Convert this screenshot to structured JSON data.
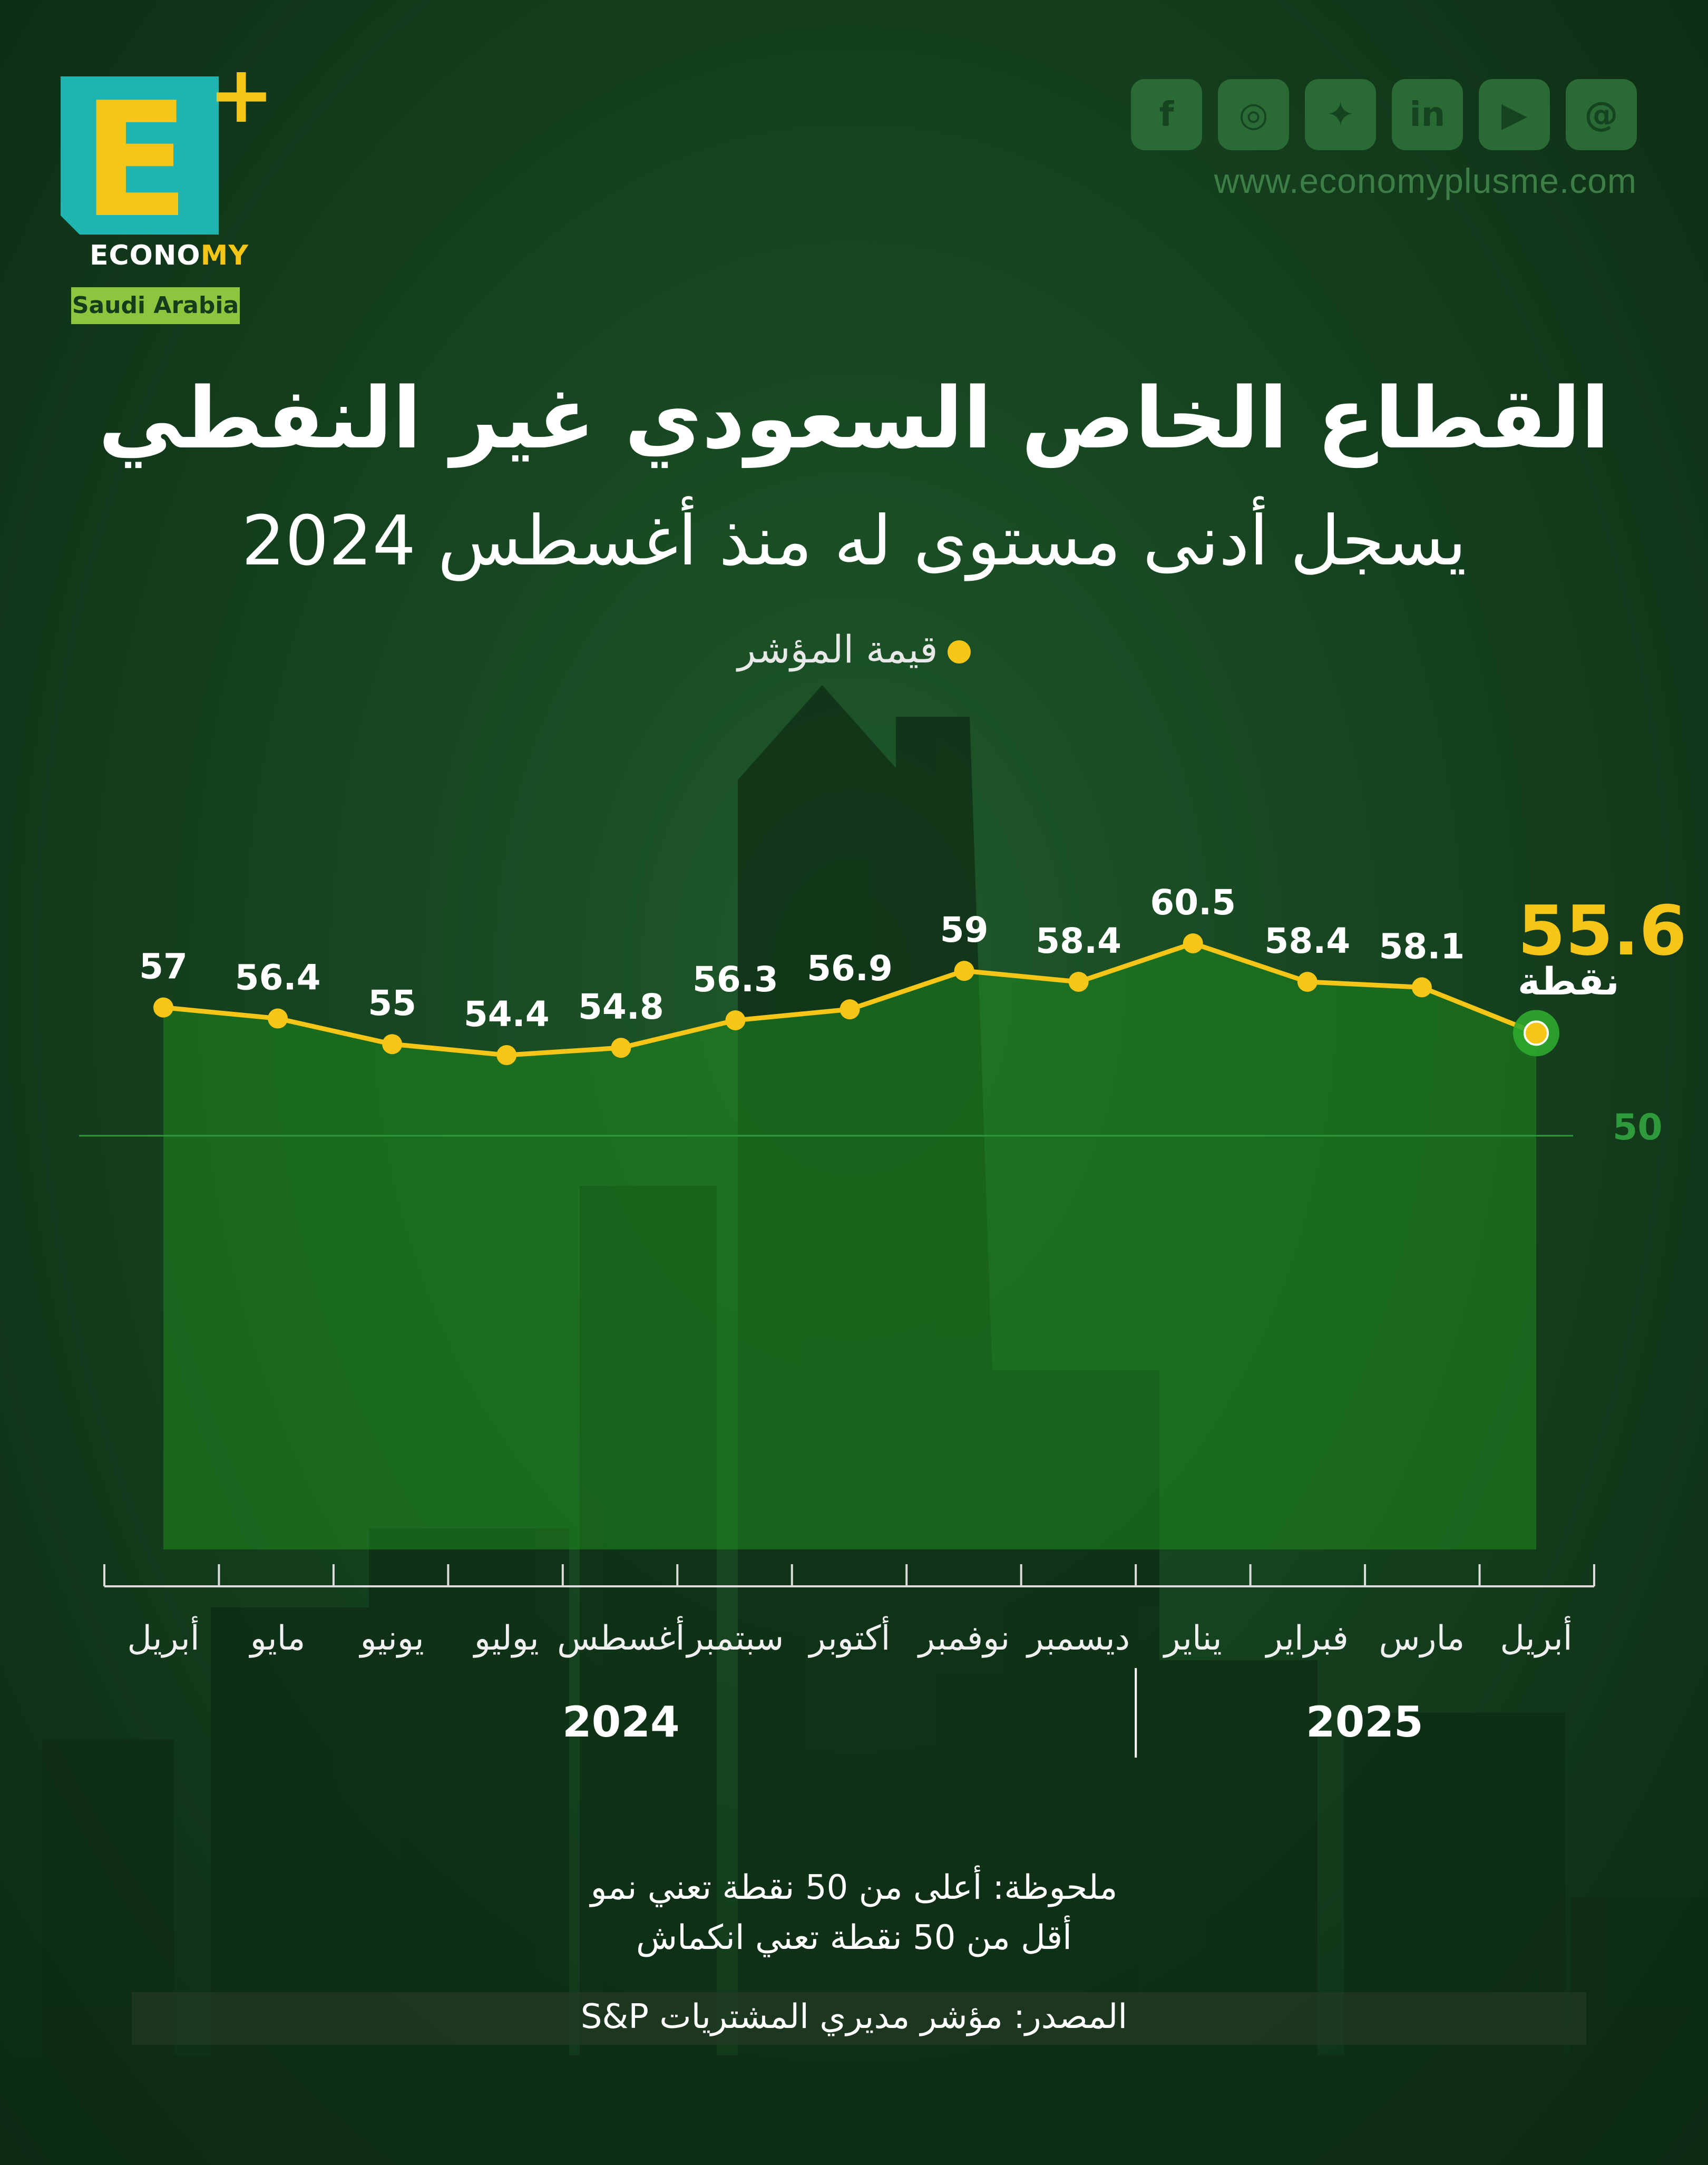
{
  "brand": {
    "logo_letter": "E",
    "logo_plus": "+",
    "logo_word_pre": "ECONO",
    "logo_word_post": "MY",
    "country": "Saudi Arabia",
    "site_url": "www.economyplusme.com",
    "social_icons": [
      "facebook-icon",
      "instagram-icon",
      "twitter-icon",
      "linkedin-icon",
      "youtube-icon",
      "threads-icon"
    ],
    "social_glyphs": [
      "f",
      "◎",
      "✦",
      "in",
      "▶",
      "@"
    ]
  },
  "colors": {
    "background": "#164420",
    "line": "#f5c518",
    "area_fill": "#1f8a1f",
    "reference_line": "#2e9a3c",
    "logo_teal": "#1fb4b0",
    "logo_green": "#8cc63f"
  },
  "title": {
    "line1": "القطاع الخاص السعودي غير النفطي",
    "line2": "يسجل أدنى مستوى له منذ أغسطس 2024"
  },
  "legend_label": "قيمة المؤشر",
  "chart_data": {
    "type": "area",
    "series": [
      {
        "name": "قيمة المؤشر",
        "values": [
          57,
          56.4,
          55,
          54.4,
          54.8,
          56.3,
          56.9,
          59,
          58.4,
          60.5,
          58.4,
          58.1,
          55.6
        ]
      }
    ],
    "categories": [
      "أبريل",
      "مايو",
      "يونيو",
      "يوليو",
      "أغسطس",
      "سبتمبر",
      "أكتوبر",
      "نوفمبر",
      "ديسمبر",
      "يناير",
      "فبراير",
      "مارس",
      "أبريل"
    ],
    "value_labels": [
      "57",
      "56.4",
      "55",
      "54.4",
      "54.8",
      "56.3",
      "56.9",
      "59",
      "58.4",
      "60.5",
      "58.4",
      "58.1",
      "55.6"
    ],
    "years": [
      {
        "label": "2024",
        "from": 0,
        "to": 8
      },
      {
        "label": "2025",
        "from": 9,
        "to": 12
      }
    ],
    "reference_line": {
      "value": 50,
      "label": "50"
    },
    "latest": {
      "value": "55.6",
      "unit": "نقطة"
    },
    "direction": "right-to-left",
    "grid": false
  },
  "notes": {
    "line1": "ملحوظة: أعلى من 50 نقطة تعني نمو",
    "line2": "أقل من 50 نقطة تعني انكماش"
  },
  "source": "المصدر: مؤشر مديري المشتريات S&P"
}
